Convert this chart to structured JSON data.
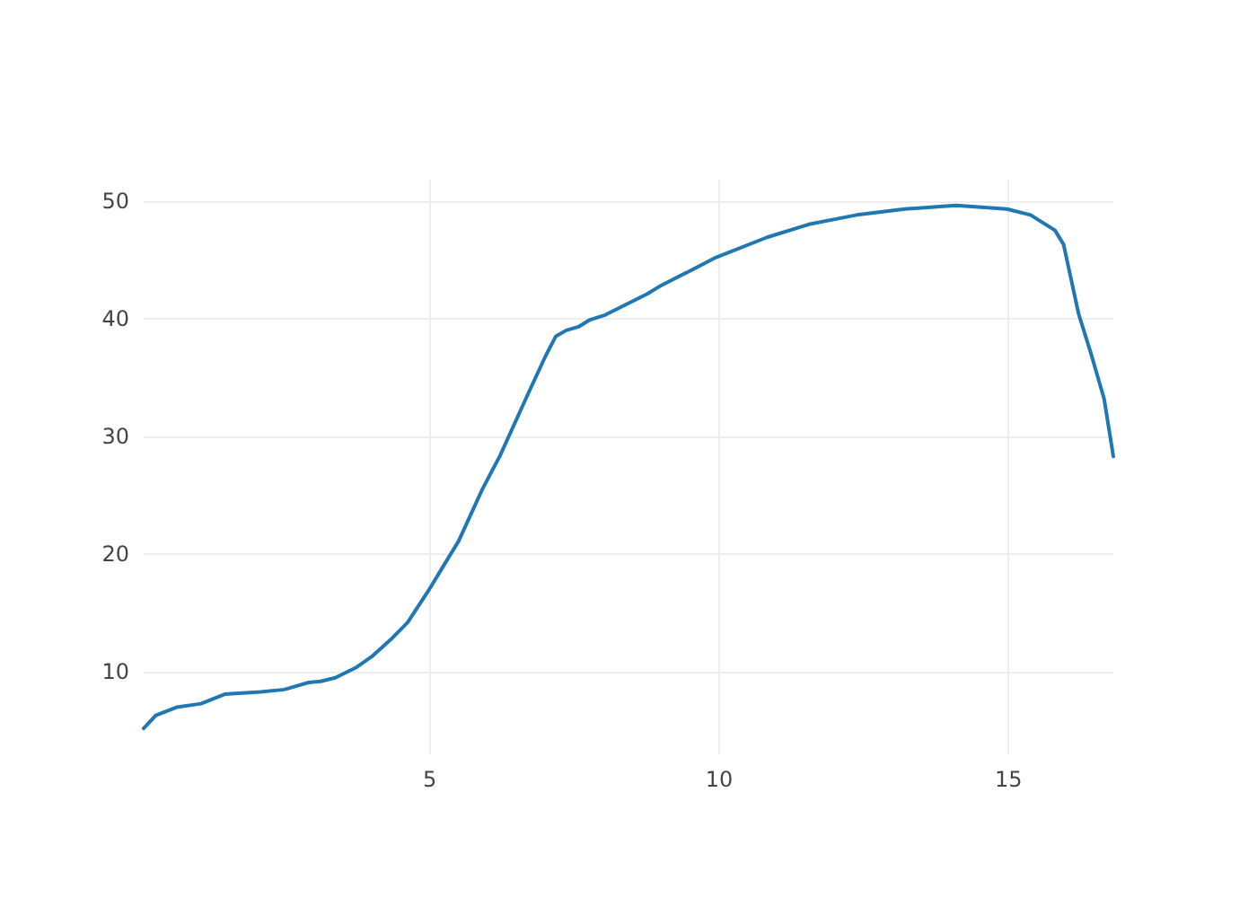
{
  "chart_data": {
    "type": "line",
    "x": [
      0.06,
      0.27,
      0.63,
      1.05,
      1.46,
      2.08,
      2.49,
      2.91,
      3.12,
      3.37,
      3.74,
      4.0,
      4.36,
      4.62,
      4.98,
      5.19,
      5.5,
      5.91,
      6.22,
      6.69,
      7.0,
      7.18,
      7.36,
      7.57,
      7.77,
      8.03,
      8.76,
      8.96,
      9.95,
      10.83,
      11.55,
      12.38,
      13.21,
      14.09,
      14.97,
      15.38,
      15.8,
      15.95,
      16.06,
      16.21,
      16.42,
      16.65,
      16.81
    ],
    "series": [
      {
        "color": "#1f77b4",
        "values": [
          5.2,
          6.3,
          7.0,
          7.3,
          8.1,
          8.3,
          8.5,
          9.1,
          9.2,
          9.5,
          10.4,
          11.3,
          12.9,
          14.2,
          16.9,
          18.6,
          21.1,
          25.5,
          28.4,
          33.5,
          36.8,
          38.5,
          39.0,
          39.3,
          39.9,
          40.3,
          42.1,
          42.7,
          45.2,
          46.9,
          48.0,
          48.8,
          49.3,
          49.6,
          49.3,
          48.8,
          47.5,
          46.3,
          43.8,
          40.4,
          37.1,
          33.2,
          28.3
        ]
      }
    ],
    "xlim": [
      0.06,
      16.81
    ],
    "xticks": [
      5,
      10,
      15
    ],
    "ylim": [
      3,
      51.8
    ],
    "yticks": [
      10,
      20,
      30,
      40,
      50
    ],
    "grid": true,
    "marker": "none",
    "line_style": "solid"
  }
}
